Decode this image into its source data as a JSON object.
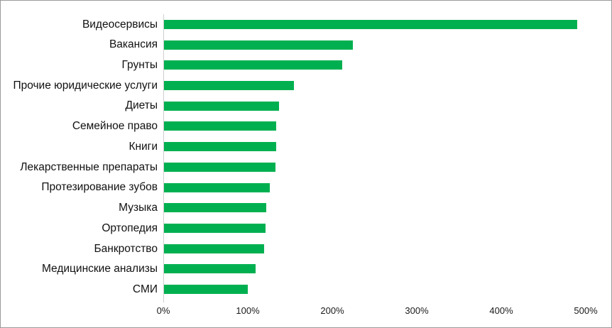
{
  "chart_data": {
    "type": "bar",
    "orientation": "horizontal",
    "title": "",
    "xlabel": "",
    "ylabel": "",
    "categories": [
      "Видеосервисы",
      "Вакансия",
      "Грунты",
      "Прочие юридические услуги",
      "Диеты",
      "Семейное право",
      "Книги",
      "Лекарственные препараты",
      "Протезирование зубов",
      "Музыка",
      "Ортопедия",
      "Банкротство",
      "Медицинские анализы",
      "СМИ"
    ],
    "values": [
      490,
      224,
      212,
      155,
      137,
      134,
      134,
      133,
      126,
      122,
      121,
      119,
      109,
      100
    ],
    "value_suffix": "%",
    "xlim": [
      0,
      500
    ],
    "x_ticks": [
      "0%",
      "100%",
      "200%",
      "300%",
      "400%",
      "500%"
    ],
    "x_tick_values": [
      0,
      100,
      200,
      300,
      400,
      500
    ],
    "grid": false,
    "legend": "none",
    "colors": {
      "bar": "#00B050",
      "axis_line": "#d0cece",
      "tick_text": "#1a1a1a",
      "label_text": "#111111",
      "border": "#9a9a9a",
      "background": "#ffffff"
    }
  }
}
